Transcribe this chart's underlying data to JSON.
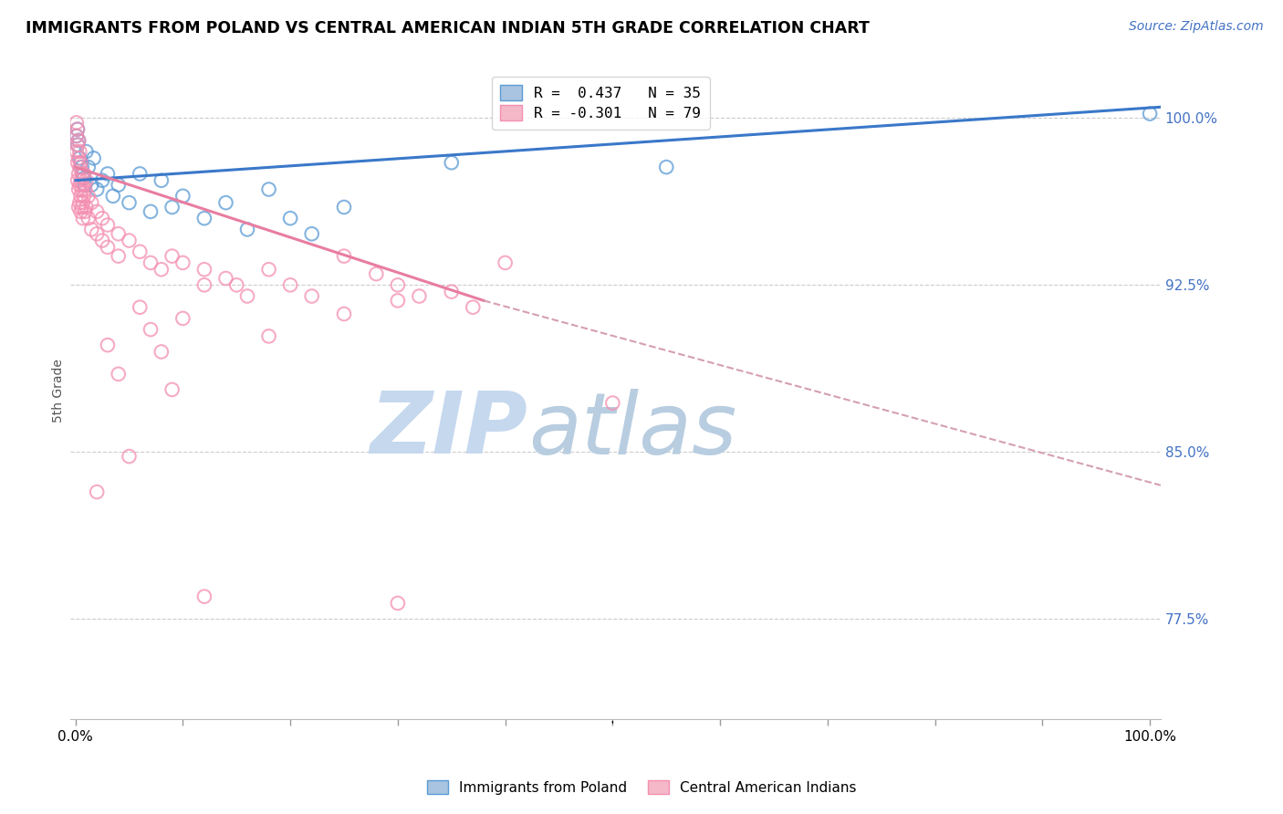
{
  "title": "IMMIGRANTS FROM POLAND VS CENTRAL AMERICAN INDIAN 5TH GRADE CORRELATION CHART",
  "source": "Source: ZipAtlas.com",
  "ylabel": "5th Grade",
  "ymin": 73.0,
  "ymax": 102.5,
  "xmin": -0.005,
  "xmax": 1.01,
  "legend_r1": "R =  0.437   N = 35",
  "legend_r2": "R = -0.301   N = 79",
  "legend_color1": "#a8c4e0",
  "legend_color2": "#f4b8c8",
  "color_blue": "#5b9bd5",
  "color_pink": "#f48fb1",
  "color_line_blue": "#3a78c9",
  "color_line_pink": "#e87da0",
  "color_dashed": "#d4a0b0",
  "watermark_zip": "ZIP",
  "watermark_atlas": "atlas",
  "watermark_color_zip": "#c5d8ee",
  "watermark_color_atlas": "#b8cde0",
  "ytick_vals": [
    77.5,
    85.0,
    92.5,
    100.0
  ],
  "ytick_labels": [
    "77.5%",
    "85.0%",
    "92.5%",
    "100.0%"
  ],
  "blue_trendline": [
    [
      0.0,
      97.2
    ],
    [
      1.01,
      100.5
    ]
  ],
  "pink_trendline_solid": [
    [
      0.0,
      97.8
    ],
    [
      0.38,
      91.8
    ]
  ],
  "pink_trendline_dashed": [
    [
      0.38,
      91.8
    ],
    [
      1.01,
      83.5
    ]
  ],
  "blue_points": [
    [
      0.001,
      99.2
    ],
    [
      0.002,
      98.8
    ],
    [
      0.002,
      99.5
    ],
    [
      0.003,
      99.0
    ],
    [
      0.004,
      98.2
    ],
    [
      0.005,
      98.0
    ],
    [
      0.006,
      97.8
    ],
    [
      0.007,
      97.5
    ],
    [
      0.008,
      97.3
    ],
    [
      0.009,
      97.0
    ],
    [
      0.01,
      98.5
    ],
    [
      0.012,
      97.8
    ],
    [
      0.015,
      97.0
    ],
    [
      0.017,
      98.2
    ],
    [
      0.02,
      96.8
    ],
    [
      0.025,
      97.2
    ],
    [
      0.03,
      97.5
    ],
    [
      0.035,
      96.5
    ],
    [
      0.04,
      97.0
    ],
    [
      0.05,
      96.2
    ],
    [
      0.06,
      97.5
    ],
    [
      0.07,
      95.8
    ],
    [
      0.08,
      97.2
    ],
    [
      0.09,
      96.0
    ],
    [
      0.1,
      96.5
    ],
    [
      0.12,
      95.5
    ],
    [
      0.14,
      96.2
    ],
    [
      0.16,
      95.0
    ],
    [
      0.18,
      96.8
    ],
    [
      0.2,
      95.5
    ],
    [
      0.22,
      94.8
    ],
    [
      0.25,
      96.0
    ],
    [
      0.35,
      98.0
    ],
    [
      0.55,
      97.8
    ],
    [
      1.0,
      100.2
    ]
  ],
  "pink_points": [
    [
      0.001,
      99.8
    ],
    [
      0.001,
      99.2
    ],
    [
      0.001,
      98.5
    ],
    [
      0.002,
      99.5
    ],
    [
      0.002,
      98.8
    ],
    [
      0.002,
      98.0
    ],
    [
      0.002,
      97.2
    ],
    [
      0.003,
      99.0
    ],
    [
      0.003,
      98.2
    ],
    [
      0.003,
      97.5
    ],
    [
      0.003,
      96.8
    ],
    [
      0.003,
      96.0
    ],
    [
      0.004,
      98.5
    ],
    [
      0.004,
      97.8
    ],
    [
      0.004,
      97.0
    ],
    [
      0.004,
      96.2
    ],
    [
      0.005,
      98.0
    ],
    [
      0.005,
      97.2
    ],
    [
      0.005,
      96.5
    ],
    [
      0.005,
      95.8
    ],
    [
      0.006,
      97.5
    ],
    [
      0.006,
      96.8
    ],
    [
      0.006,
      96.0
    ],
    [
      0.007,
      97.0
    ],
    [
      0.007,
      96.2
    ],
    [
      0.007,
      95.5
    ],
    [
      0.008,
      97.5
    ],
    [
      0.008,
      96.5
    ],
    [
      0.009,
      96.8
    ],
    [
      0.009,
      95.8
    ],
    [
      0.01,
      97.2
    ],
    [
      0.01,
      96.0
    ],
    [
      0.012,
      96.5
    ],
    [
      0.012,
      95.5
    ],
    [
      0.015,
      96.2
    ],
    [
      0.015,
      95.0
    ],
    [
      0.02,
      95.8
    ],
    [
      0.02,
      94.8
    ],
    [
      0.025,
      95.5
    ],
    [
      0.025,
      94.5
    ],
    [
      0.03,
      95.2
    ],
    [
      0.03,
      94.2
    ],
    [
      0.04,
      94.8
    ],
    [
      0.04,
      93.8
    ],
    [
      0.05,
      94.5
    ],
    [
      0.06,
      94.0
    ],
    [
      0.07,
      93.5
    ],
    [
      0.08,
      93.2
    ],
    [
      0.09,
      93.8
    ],
    [
      0.1,
      93.5
    ],
    [
      0.12,
      93.2
    ],
    [
      0.12,
      92.5
    ],
    [
      0.14,
      92.8
    ],
    [
      0.15,
      92.5
    ],
    [
      0.16,
      92.0
    ],
    [
      0.18,
      93.2
    ],
    [
      0.2,
      92.5
    ],
    [
      0.22,
      92.0
    ],
    [
      0.25,
      93.8
    ],
    [
      0.28,
      93.0
    ],
    [
      0.3,
      92.5
    ],
    [
      0.3,
      91.8
    ],
    [
      0.32,
      92.0
    ],
    [
      0.35,
      92.2
    ],
    [
      0.37,
      91.5
    ],
    [
      0.4,
      93.5
    ],
    [
      0.18,
      90.2
    ],
    [
      0.08,
      89.5
    ],
    [
      0.06,
      91.5
    ],
    [
      0.1,
      91.0
    ],
    [
      0.25,
      91.2
    ],
    [
      0.07,
      90.5
    ],
    [
      0.5,
      87.2
    ],
    [
      0.03,
      89.8
    ],
    [
      0.04,
      88.5
    ],
    [
      0.09,
      87.8
    ],
    [
      0.05,
      84.8
    ],
    [
      0.02,
      83.2
    ],
    [
      0.12,
      78.5
    ],
    [
      0.3,
      78.2
    ]
  ]
}
